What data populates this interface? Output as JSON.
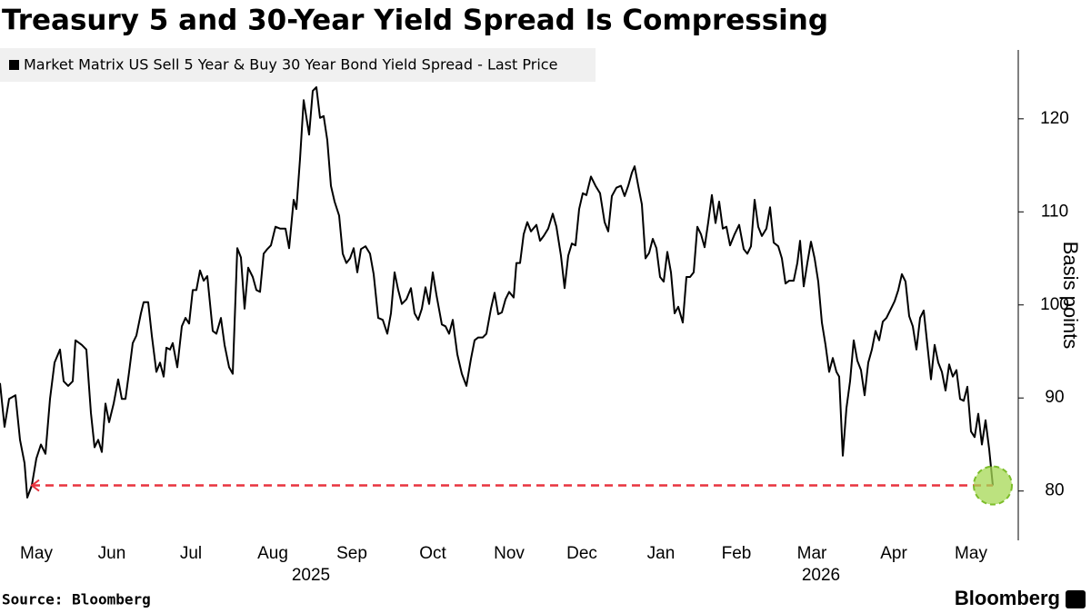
{
  "chart_data": {
    "type": "line",
    "title": "Treasury 5 and 30-Year Yield Spread Is Compressing",
    "y_label": "Basis points",
    "source": "Source: Bloomberg",
    "brand": "Bloomberg",
    "x": [
      0,
      5,
      10,
      17,
      22,
      27,
      30,
      35,
      40,
      45,
      50,
      55,
      60,
      66,
      70,
      75,
      80,
      83,
      90,
      95,
      100,
      104,
      108,
      112,
      116,
      120,
      125,
      130,
      134,
      138,
      142,
      146,
      150,
      155,
      158,
      163,
      167,
      172,
      176,
      180,
      183,
      187,
      190,
      195,
      200,
      204,
      208,
      212,
      216,
      220,
      224,
      228,
      234,
      238,
      243,
      247,
      252,
      256,
      261,
      265,
      269,
      273,
      278,
      282,
      286,
      290,
      294,
      298,
      303,
      308,
      314,
      318,
      323,
      326,
      330,
      334,
      340,
      344,
      348,
      352,
      356,
      360,
      364,
      368,
      373,
      377,
      381,
      385,
      389,
      393,
      397,
      402,
      407,
      411,
      416,
      421,
      426,
      430,
      434,
      438,
      442,
      447,
      452,
      456,
      460,
      464,
      468,
      472,
      476,
      480,
      486,
      490,
      494,
      498,
      503,
      508,
      513,
      518,
      522,
      526,
      531,
      535,
      540,
      544,
      548,
      552,
      556,
      560,
      565,
      568,
      572,
      576,
      580,
      584,
      590,
      594,
      598,
      603,
      608,
      612,
      617,
      621,
      625,
      629,
      633,
      637,
      641,
      645,
      650,
      655,
      660,
      665,
      669,
      673,
      678,
      683,
      687,
      691,
      695,
      698,
      702,
      706,
      710,
      714,
      718,
      722,
      726,
      730,
      734,
      738,
      742,
      746,
      751,
      755,
      759,
      763,
      767,
      771,
      775,
      779,
      783,
      787,
      791,
      795,
      799,
      803,
      808,
      813,
      818,
      822,
      826,
      830,
      834,
      838,
      843,
      847,
      851,
      856,
      860,
      864,
      868,
      873,
      877,
      880,
      884,
      888,
      892,
      896,
      900,
      904,
      908,
      912,
      916,
      920,
      923,
      927,
      931,
      935,
      939,
      943,
      947,
      951,
      955,
      959,
      963,
      967,
      971,
      975,
      980,
      984,
      988,
      992,
      996,
      1000,
      1004,
      1008,
      1012,
      1016,
      1020,
      1024,
      1028,
      1032,
      1036,
      1040,
      1044,
      1048,
      1052,
      1056,
      1060,
      1064,
      1068,
      1072,
      1076,
      1080,
      1084,
      1088,
      1092
    ],
    "series": [
      {
        "name": "Market Matrix US Sell 5 Year & Buy 30 Year Bond Yield Spread - Last Price",
        "color": "#000000",
        "values": [
          91.6,
          86.9,
          89.9,
          90.3,
          85.5,
          83.0,
          79.3,
          80.6,
          83.5,
          85.0,
          84.0,
          89.9,
          93.8,
          95.2,
          91.8,
          91.3,
          91.8,
          96.2,
          95.7,
          95.2,
          88.4,
          84.7,
          85.5,
          84.2,
          89.4,
          87.4,
          89.4,
          92.0,
          89.9,
          89.9,
          92.8,
          95.9,
          96.7,
          99.1,
          100.3,
          100.3,
          96.7,
          92.8,
          93.8,
          92.3,
          95.4,
          95.2,
          95.9,
          93.3,
          97.7,
          98.6,
          98.0,
          101.6,
          101.6,
          103.7,
          102.6,
          103.1,
          97.2,
          96.9,
          98.6,
          95.7,
          93.3,
          92.6,
          106.1,
          105.1,
          99.6,
          104.0,
          103.0,
          101.6,
          101.4,
          105.5,
          106.0,
          106.4,
          108.4,
          108.2,
          108.2,
          106.1,
          111.3,
          110.3,
          115.7,
          122.0,
          118.3,
          123.0,
          123.4,
          120.1,
          120.3,
          117.7,
          112.8,
          111.1,
          109.6,
          105.5,
          104.5,
          105.0,
          106.1,
          103.5,
          106.0,
          106.3,
          105.5,
          103.3,
          98.6,
          98.4,
          96.9,
          99.1,
          103.5,
          101.6,
          100.1,
          100.6,
          101.8,
          99.1,
          98.4,
          99.6,
          101.9,
          100.1,
          103.5,
          101.1,
          97.9,
          97.7,
          96.9,
          98.4,
          94.7,
          92.6,
          91.3,
          94.2,
          96.2,
          96.5,
          96.5,
          96.9,
          99.6,
          101.3,
          99.0,
          99.2,
          100.6,
          101.4,
          100.8,
          104.5,
          104.5,
          107.6,
          108.9,
          107.9,
          108.6,
          106.9,
          107.4,
          108.2,
          109.8,
          108.4,
          105.3,
          101.8,
          105.3,
          106.6,
          106.4,
          110.3,
          112.0,
          111.8,
          113.8,
          112.8,
          112.0,
          108.9,
          107.9,
          111.7,
          112.6,
          112.8,
          111.7,
          112.8,
          114.2,
          114.9,
          112.8,
          110.8,
          105.0,
          105.6,
          107.1,
          106.1,
          103.0,
          102.5,
          105.7,
          103.5,
          99.1,
          99.8,
          98.1,
          103.0,
          103.0,
          103.5,
          108.4,
          107.6,
          106.2,
          108.9,
          111.8,
          108.8,
          111.1,
          108.2,
          108.4,
          106.4,
          107.6,
          108.6,
          106.0,
          105.5,
          106.3,
          111.3,
          108.4,
          107.4,
          108.2,
          110.5,
          106.7,
          106.3,
          105.0,
          102.3,
          102.6,
          102.6,
          104.5,
          106.9,
          102.0,
          104.5,
          106.8,
          105.0,
          102.5,
          98.1,
          95.7,
          92.8,
          94.3,
          92.8,
          92.3,
          83.8,
          88.9,
          91.8,
          96.2,
          94.0,
          93.0,
          90.3,
          93.8,
          95.2,
          97.2,
          96.2,
          98.2,
          98.6,
          99.6,
          100.4,
          101.6,
          103.3,
          102.5,
          98.8,
          97.7,
          95.2,
          98.6,
          99.4,
          95.7,
          92.0,
          95.7,
          93.8,
          92.8,
          90.8,
          93.6,
          92.3,
          93.0,
          89.9,
          89.7,
          91.2,
          86.4,
          85.8,
          88.3,
          85.0,
          87.6,
          84.5,
          80.6
        ]
      }
    ],
    "xlim": [
      0,
      1100
    ],
    "xticks": [
      {
        "value": 40,
        "label": "May"
      },
      {
        "value": 123,
        "label": "Jun"
      },
      {
        "value": 210,
        "label": "Jul"
      },
      {
        "value": 300,
        "label": "Aug"
      },
      {
        "value": 387,
        "label": "Sep"
      },
      {
        "value": 476,
        "label": "Oct"
      },
      {
        "value": 560,
        "label": "Nov"
      },
      {
        "value": 640,
        "label": "Dec"
      },
      {
        "value": 727,
        "label": "Jan"
      },
      {
        "value": 810,
        "label": "Feb"
      },
      {
        "value": 893,
        "label": "Mar"
      },
      {
        "value": 983,
        "label": "Apr"
      },
      {
        "value": 1068,
        "label": "May"
      }
    ],
    "year_labels": [
      {
        "x": 342,
        "text": "2025"
      },
      {
        "x": 903,
        "text": "2026"
      }
    ],
    "ylim": [
      74.7,
      127.4
    ],
    "yticks": [
      80,
      90,
      100,
      110,
      120
    ],
    "reference_line": {
      "value": 80.6,
      "x_start": 35,
      "x_end": 1092,
      "color": "#e8343f"
    },
    "highlight_color": "#a6d854"
  }
}
